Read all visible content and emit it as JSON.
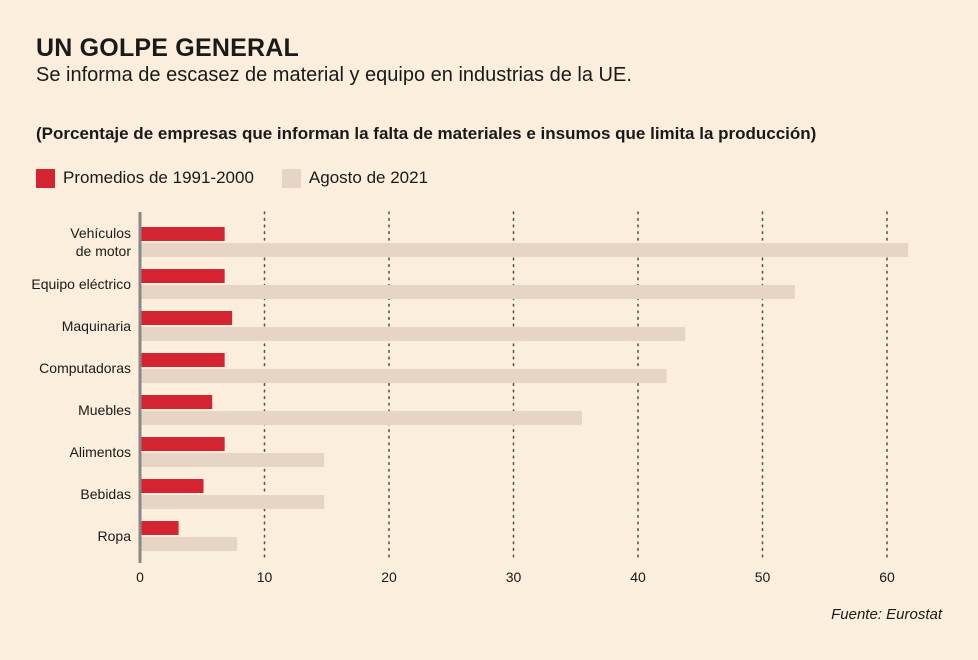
{
  "header": {
    "title": "UN GOLPE GENERAL",
    "subtitle": "Se informa de escasez de material y equipo en industrias de la UE.",
    "note": "(Porcentaje de empresas que informan la falta de materiales e insumos que limita la producción)"
  },
  "footer": {
    "source": "Fuente: Eurostat"
  },
  "colors": {
    "background": "#fbeedc",
    "series_1": "#d42331",
    "series_2": "#e6d5c4",
    "grid": "#555555",
    "axis": "#888888"
  },
  "chart_data": {
    "type": "bar",
    "orientation": "horizontal",
    "categories": [
      [
        "Vehículos",
        "de motor"
      ],
      [
        "Equipo eléctrico"
      ],
      [
        "Maquinaria"
      ],
      [
        "Computadoras"
      ],
      [
        "Muebles"
      ],
      [
        "Alimentos"
      ],
      [
        "Bebidas"
      ],
      [
        "Ropa"
      ]
    ],
    "series": [
      {
        "name": "Promedios de 1991-2000",
        "color": "#d42331",
        "values": [
          6.8,
          6.8,
          7.4,
          6.8,
          5.8,
          6.8,
          5.1,
          3.1
        ]
      },
      {
        "name": "Agosto de 2021",
        "color": "#e6d5c4",
        "values": [
          61.7,
          52.6,
          43.8,
          42.3,
          35.5,
          14.8,
          14.8,
          7.8
        ]
      }
    ],
    "x_ticks": [
      0,
      10,
      20,
      30,
      40,
      50,
      60
    ],
    "xlim": [
      0,
      62
    ],
    "grid": "vertical-dotted",
    "legend_position": "top-left"
  }
}
